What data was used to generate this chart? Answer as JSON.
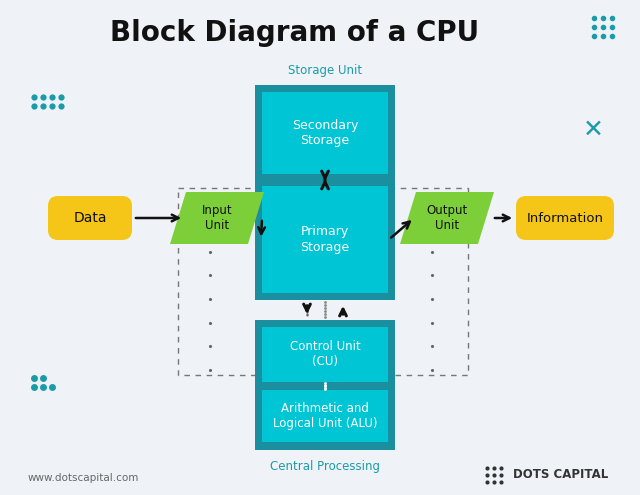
{
  "title": "Block Diagram of a CPU",
  "bg_color": "#eff3f7",
  "teal_dark": "#1a8fa0",
  "teal_light": "#00c5d4",
  "green": "#7dcf3a",
  "yellow": "#f5c518",
  "text_dark": "#222222",
  "teal_label": "#1a9baa",
  "storage_label": "Storage Unit",
  "central_label": "Central Processing",
  "secondary_storage": "Secondary\nStorage",
  "primary_storage": "Primary\nStorage",
  "control_unit": "Control Unit\n(CU)",
  "alu": "Arithmetic and\nLogical Unit (ALU)",
  "data_label": "Data",
  "input_unit": "Input\nUnit",
  "output_unit": "Output\nUnit",
  "information": "Information",
  "website": "www.dotscapital.com",
  "brand": "DOTS CAPITAL",
  "dot_color": "#1a9baa"
}
